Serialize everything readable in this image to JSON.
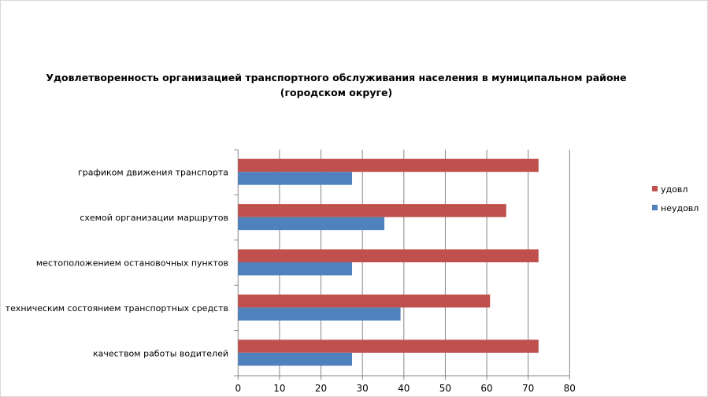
{
  "chart_data": {
    "type": "bar",
    "orientation": "horizontal",
    "title": "Удовлетворенность организацией транспортного обслуживания населения в муниципальном районе (городском округе)",
    "title_lines": [
      "Удовлетворенность организацией транспортного обслуживания населения в муниципальном районе",
      "(городском округе)"
    ],
    "categories": [
      "графиком движения транспорта",
      "схемой организации маршрутов",
      "местоположением остановочных пунктов",
      "техническим состоянием транспортных средств",
      "качеством работы водителей"
    ],
    "series": [
      {
        "name": "удовл",
        "color": "#c0504d",
        "values": [
          72.5,
          64.7,
          72.5,
          60.8,
          72.5
        ]
      },
      {
        "name": "неудовл",
        "color": "#4f81bd",
        "values": [
          27.5,
          35.3,
          27.5,
          39.2,
          27.5
        ]
      }
    ],
    "xlabel": "",
    "ylabel": "",
    "xlim": [
      0,
      80
    ],
    "xticks": [
      0,
      10,
      20,
      30,
      40,
      50,
      60,
      70,
      80
    ],
    "grid": true,
    "legend": "right"
  }
}
